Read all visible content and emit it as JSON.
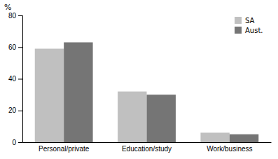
{
  "chart_data": {
    "type": "bar",
    "categories": [
      "Personal/private",
      "Education/study",
      "Work/business"
    ],
    "series": [
      {
        "name": "SA",
        "color": "#c0c0c0",
        "values": [
          59,
          32,
          6
        ]
      },
      {
        "name": "Aust.",
        "color": "#757575",
        "values": [
          63,
          30,
          5
        ]
      }
    ],
    "ylabel": "%",
    "ylim": [
      0,
      80
    ],
    "yticks": [
      0,
      20,
      40,
      60,
      80
    ],
    "grid": false,
    "legend": "upper right"
  }
}
